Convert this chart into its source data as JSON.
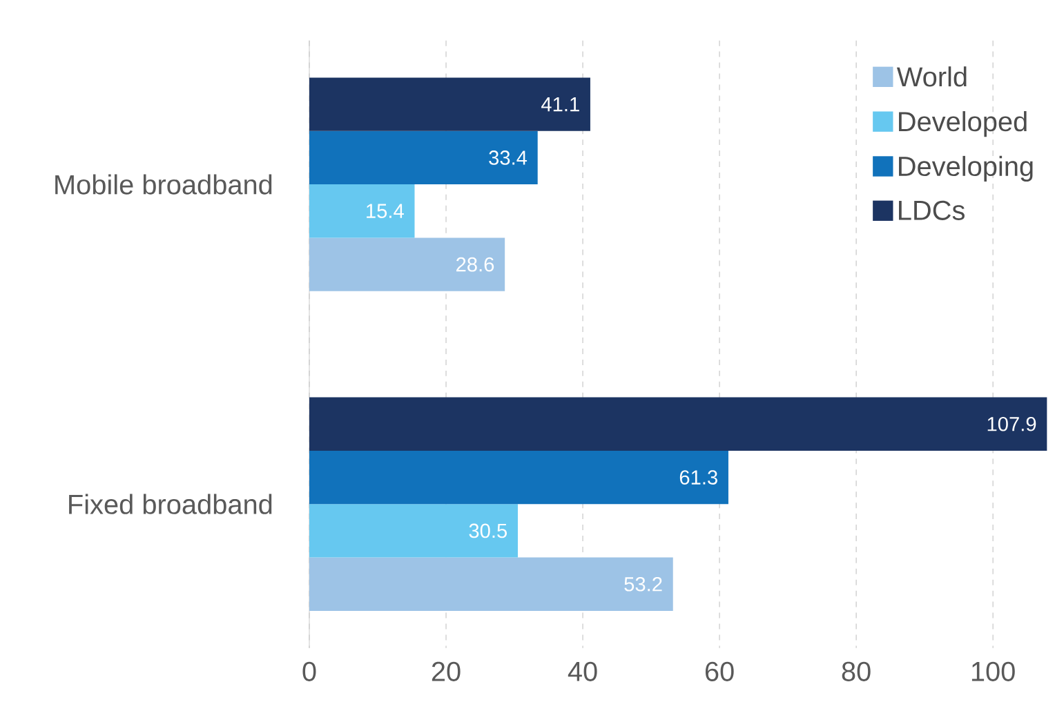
{
  "chart_data": {
    "type": "bar",
    "orientation": "horizontal",
    "categories": [
      "Mobile broadband",
      "Fixed broadband"
    ],
    "series": [
      {
        "name": "World",
        "color": "#9dc3e6",
        "values": [
          28.6,
          53.2
        ]
      },
      {
        "name": "Developed",
        "color": "#66c8f0",
        "values": [
          15.4,
          30.5
        ]
      },
      {
        "name": "Developing",
        "color": "#1172bb",
        "values": [
          33.4,
          61.3
        ]
      },
      {
        "name": "LDCs",
        "color": "#1c3462",
        "values": [
          41.1,
          107.9
        ]
      }
    ],
    "xlim": [
      0,
      108
    ],
    "xticks": [
      0,
      20,
      40,
      60,
      80,
      100
    ],
    "grid": "x",
    "legend": "top right",
    "data_labels": true
  }
}
